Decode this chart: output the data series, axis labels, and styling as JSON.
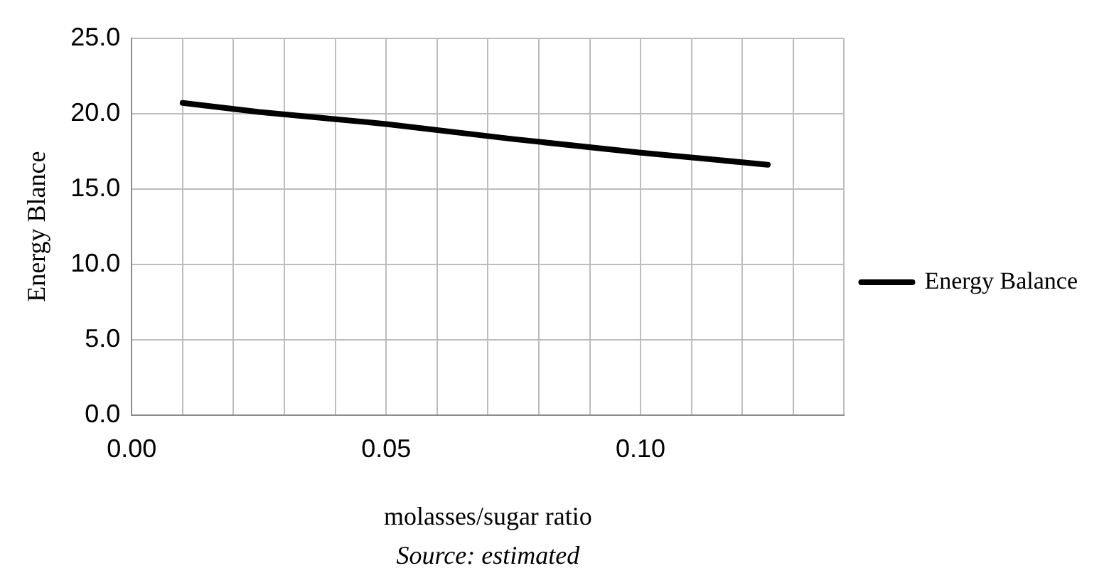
{
  "chart_data": {
    "type": "line",
    "xlabel": "molasses/sugar ratio",
    "ylabel": "Energy Blance",
    "annotations": [
      "Source: estimated"
    ],
    "series": [
      {
        "name": "Energy Balance",
        "color": "#000000",
        "x": [
          0.01,
          0.025,
          0.05,
          0.075,
          0.1,
          0.125
        ],
        "values": [
          20.7,
          20.1,
          19.3,
          18.3,
          17.4,
          16.6
        ]
      }
    ],
    "xlim": [
      0,
      0.14
    ],
    "xticks": [
      {
        "value": 0,
        "label": "0.00"
      },
      {
        "value": 0.01,
        "label": null
      },
      {
        "value": 0.02,
        "label": null
      },
      {
        "value": 0.03,
        "label": null
      },
      {
        "value": 0.04,
        "label": null
      },
      {
        "value": 0.05,
        "label": "0.05"
      },
      {
        "value": 0.06,
        "label": null
      },
      {
        "value": 0.07,
        "label": null
      },
      {
        "value": 0.08,
        "label": null
      },
      {
        "value": 0.09,
        "label": null
      },
      {
        "value": 0.1,
        "label": "0.10"
      },
      {
        "value": 0.11,
        "label": null
      },
      {
        "value": 0.12,
        "label": null
      },
      {
        "value": 0.13,
        "label": null
      },
      {
        "value": 0.14,
        "label": null
      }
    ],
    "ylim": [
      0,
      25
    ],
    "yticks": [
      {
        "value": 0,
        "label": "0.0"
      },
      {
        "value": 5,
        "label": "5.0"
      },
      {
        "value": 10,
        "label": "10.0"
      },
      {
        "value": 15,
        "label": "15.0"
      },
      {
        "value": 20,
        "label": "20.0"
      },
      {
        "value": 25,
        "label": "25.0"
      }
    ],
    "grid": true,
    "legend": "right",
    "marker": "none",
    "line_style": "solid"
  }
}
